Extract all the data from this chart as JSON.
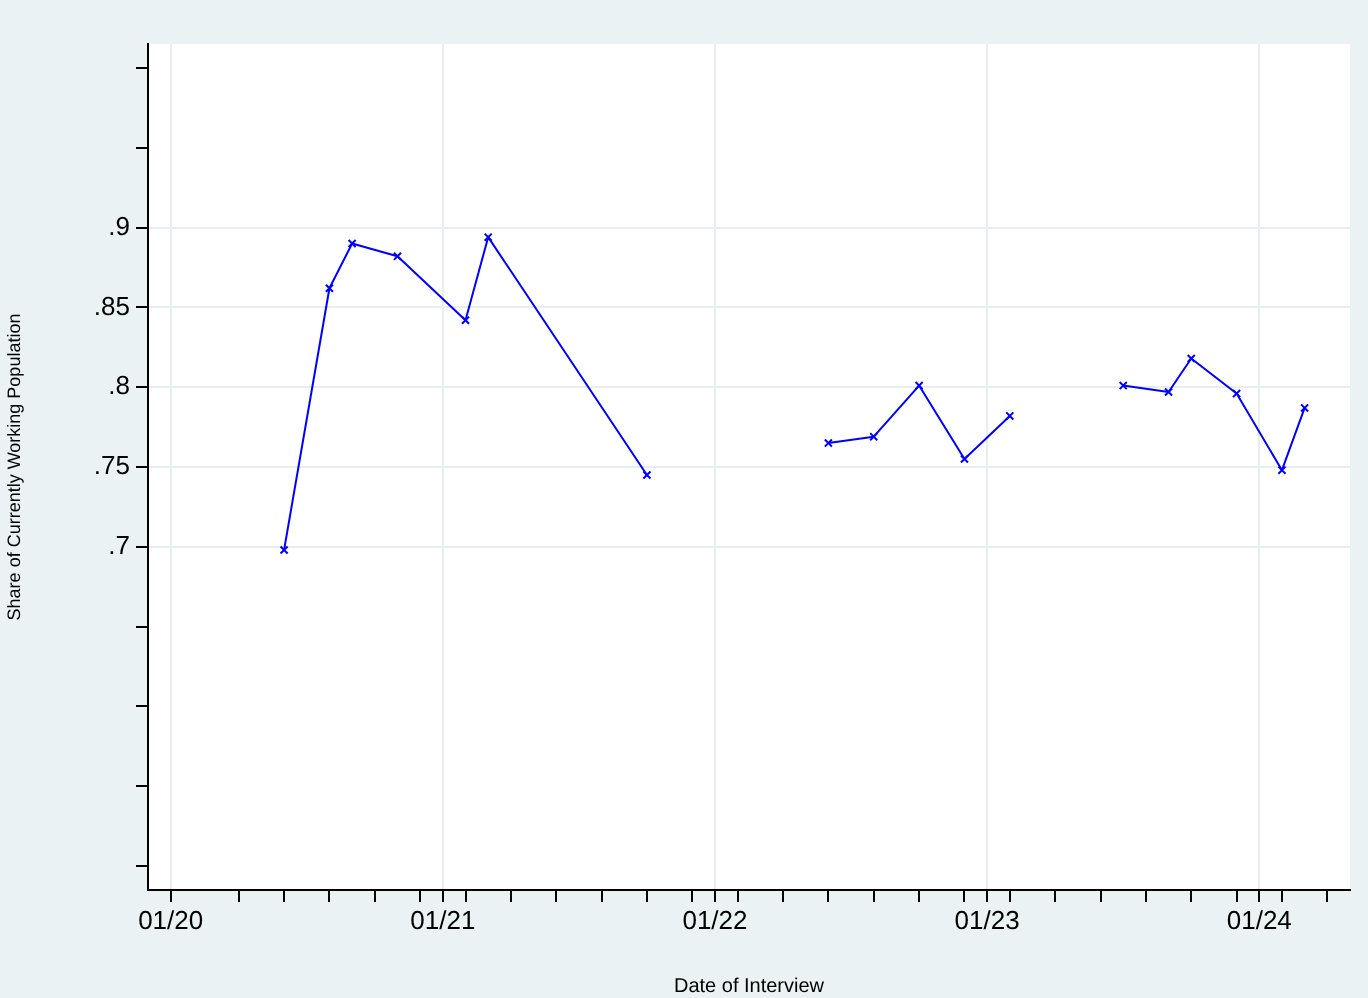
{
  "chart_data": {
    "type": "line",
    "xlabel": "Date of Interview",
    "ylabel": "Share of Currently Working Population",
    "x": [
      "2020-06",
      "2020-08",
      "2020-09",
      "2020-11",
      "2021-02",
      "2021-03",
      "2021-10",
      "2022-01",
      "2022-06",
      "2022-08",
      "2022-10",
      "2022-12",
      "2023-02",
      "2023-04",
      "2023-07",
      "2023-09",
      "2023-10",
      "2023-12",
      "2024-02",
      "2024-03"
    ],
    "series": [
      {
        "color": "#0000ff",
        "values": [
          0.698,
          0.862,
          0.89,
          0.882,
          0.842,
          0.894,
          0.745,
          null,
          0.765,
          0.769,
          0.801,
          0.755,
          0.782,
          null,
          0.801,
          0.797,
          0.818,
          0.796,
          0.748,
          0.787
        ]
      }
    ],
    "xlim": [
      "2019-12",
      "2024-05"
    ],
    "xticks": [
      {
        "value": "2020-01",
        "label": "01/20"
      },
      {
        "value": "2020-04",
        "label": null
      },
      {
        "value": "2020-06",
        "label": null
      },
      {
        "value": "2020-08",
        "label": null
      },
      {
        "value": "2020-10",
        "label": null
      },
      {
        "value": "2020-12",
        "label": null
      },
      {
        "value": "2021-01",
        "label": "01/21"
      },
      {
        "value": "2021-02",
        "label": null
      },
      {
        "value": "2021-04",
        "label": null
      },
      {
        "value": "2021-06",
        "label": null
      },
      {
        "value": "2021-08",
        "label": null
      },
      {
        "value": "2021-10",
        "label": null
      },
      {
        "value": "2021-12",
        "label": null
      },
      {
        "value": "2022-01",
        "label": "01/22"
      },
      {
        "value": "2022-02",
        "label": null
      },
      {
        "value": "2022-04",
        "label": null
      },
      {
        "value": "2022-06",
        "label": null
      },
      {
        "value": "2022-08",
        "label": null
      },
      {
        "value": "2022-10",
        "label": null
      },
      {
        "value": "2022-12",
        "label": null
      },
      {
        "value": "2023-01",
        "label": "01/23"
      },
      {
        "value": "2023-02",
        "label": null
      },
      {
        "value": "2023-04",
        "label": null
      },
      {
        "value": "2023-06",
        "label": null
      },
      {
        "value": "2023-08",
        "label": null
      },
      {
        "value": "2023-10",
        "label": null
      },
      {
        "value": "2023-12",
        "label": null
      },
      {
        "value": "2024-01",
        "label": "01/24"
      },
      {
        "value": "2024-02",
        "label": null
      },
      {
        "value": "2024-04",
        "label": null
      }
    ],
    "ylim": [
      0.485,
      1.015
    ],
    "yticks": [
      {
        "value": 0.5,
        "label": null
      },
      {
        "value": 0.55,
        "label": null
      },
      {
        "value": 0.6,
        "label": null
      },
      {
        "value": 0.65,
        "label": null
      },
      {
        "value": 0.7,
        "label": ".7"
      },
      {
        "value": 0.75,
        "label": ".75"
      },
      {
        "value": 0.8,
        "label": ".8"
      },
      {
        "value": 0.85,
        "label": ".85"
      },
      {
        "value": 0.9,
        "label": ".9"
      },
      {
        "value": 0.95,
        "label": null
      },
      {
        "value": 1.0,
        "label": null
      }
    ],
    "grid": true,
    "legend": false,
    "marker": "cross",
    "line_style": "solid"
  }
}
